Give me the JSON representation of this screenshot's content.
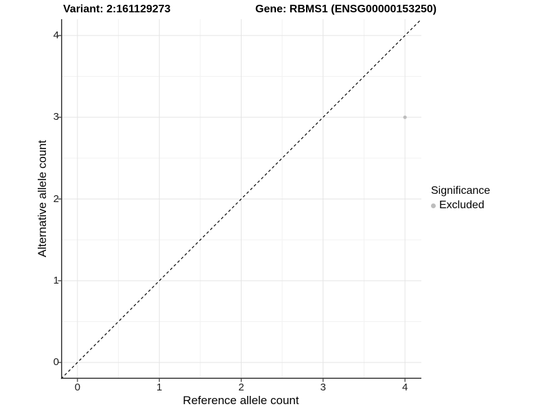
{
  "header": {
    "variant_title": "Variant: 2:161129273",
    "gene_title": "Gene: RBMS1 (ENSG00000153250)"
  },
  "chart_data": {
    "type": "scatter",
    "title_left": "Variant: 2:161129273",
    "title_right": "Gene: RBMS1 (ENSG00000153250)",
    "xlabel": "Reference allele count",
    "ylabel": "Alternative allele count",
    "xlim": [
      -0.2,
      4.2
    ],
    "ylim": [
      -0.2,
      4.2
    ],
    "x_ticks": [
      0,
      1,
      2,
      3,
      4
    ],
    "y_ticks": [
      0,
      1,
      2,
      3,
      4
    ],
    "x_minor_ticks": [
      0.5,
      1.5,
      2.5,
      3.5
    ],
    "y_minor_ticks": [
      0.5,
      1.5,
      2.5,
      3.5
    ],
    "grid": true,
    "identity_line": {
      "style": "dashed",
      "from": [
        -0.2,
        -0.2
      ],
      "to": [
        4.2,
        4.2
      ],
      "color": "#000000"
    },
    "series": [
      {
        "name": "Excluded",
        "color": "#bdbdbd",
        "points": [
          {
            "x": 4,
            "y": 3
          }
        ]
      }
    ],
    "legend": {
      "title": "Significance",
      "position": "right",
      "entries": [
        {
          "label": "Excluded",
          "color": "#bdbdbd"
        }
      ]
    },
    "colors": {
      "grid_major": "#e4e4e4",
      "grid_minor": "#f2f2f2",
      "axis": "#333333",
      "point": "#bdbdbd",
      "text": "#000000"
    }
  }
}
